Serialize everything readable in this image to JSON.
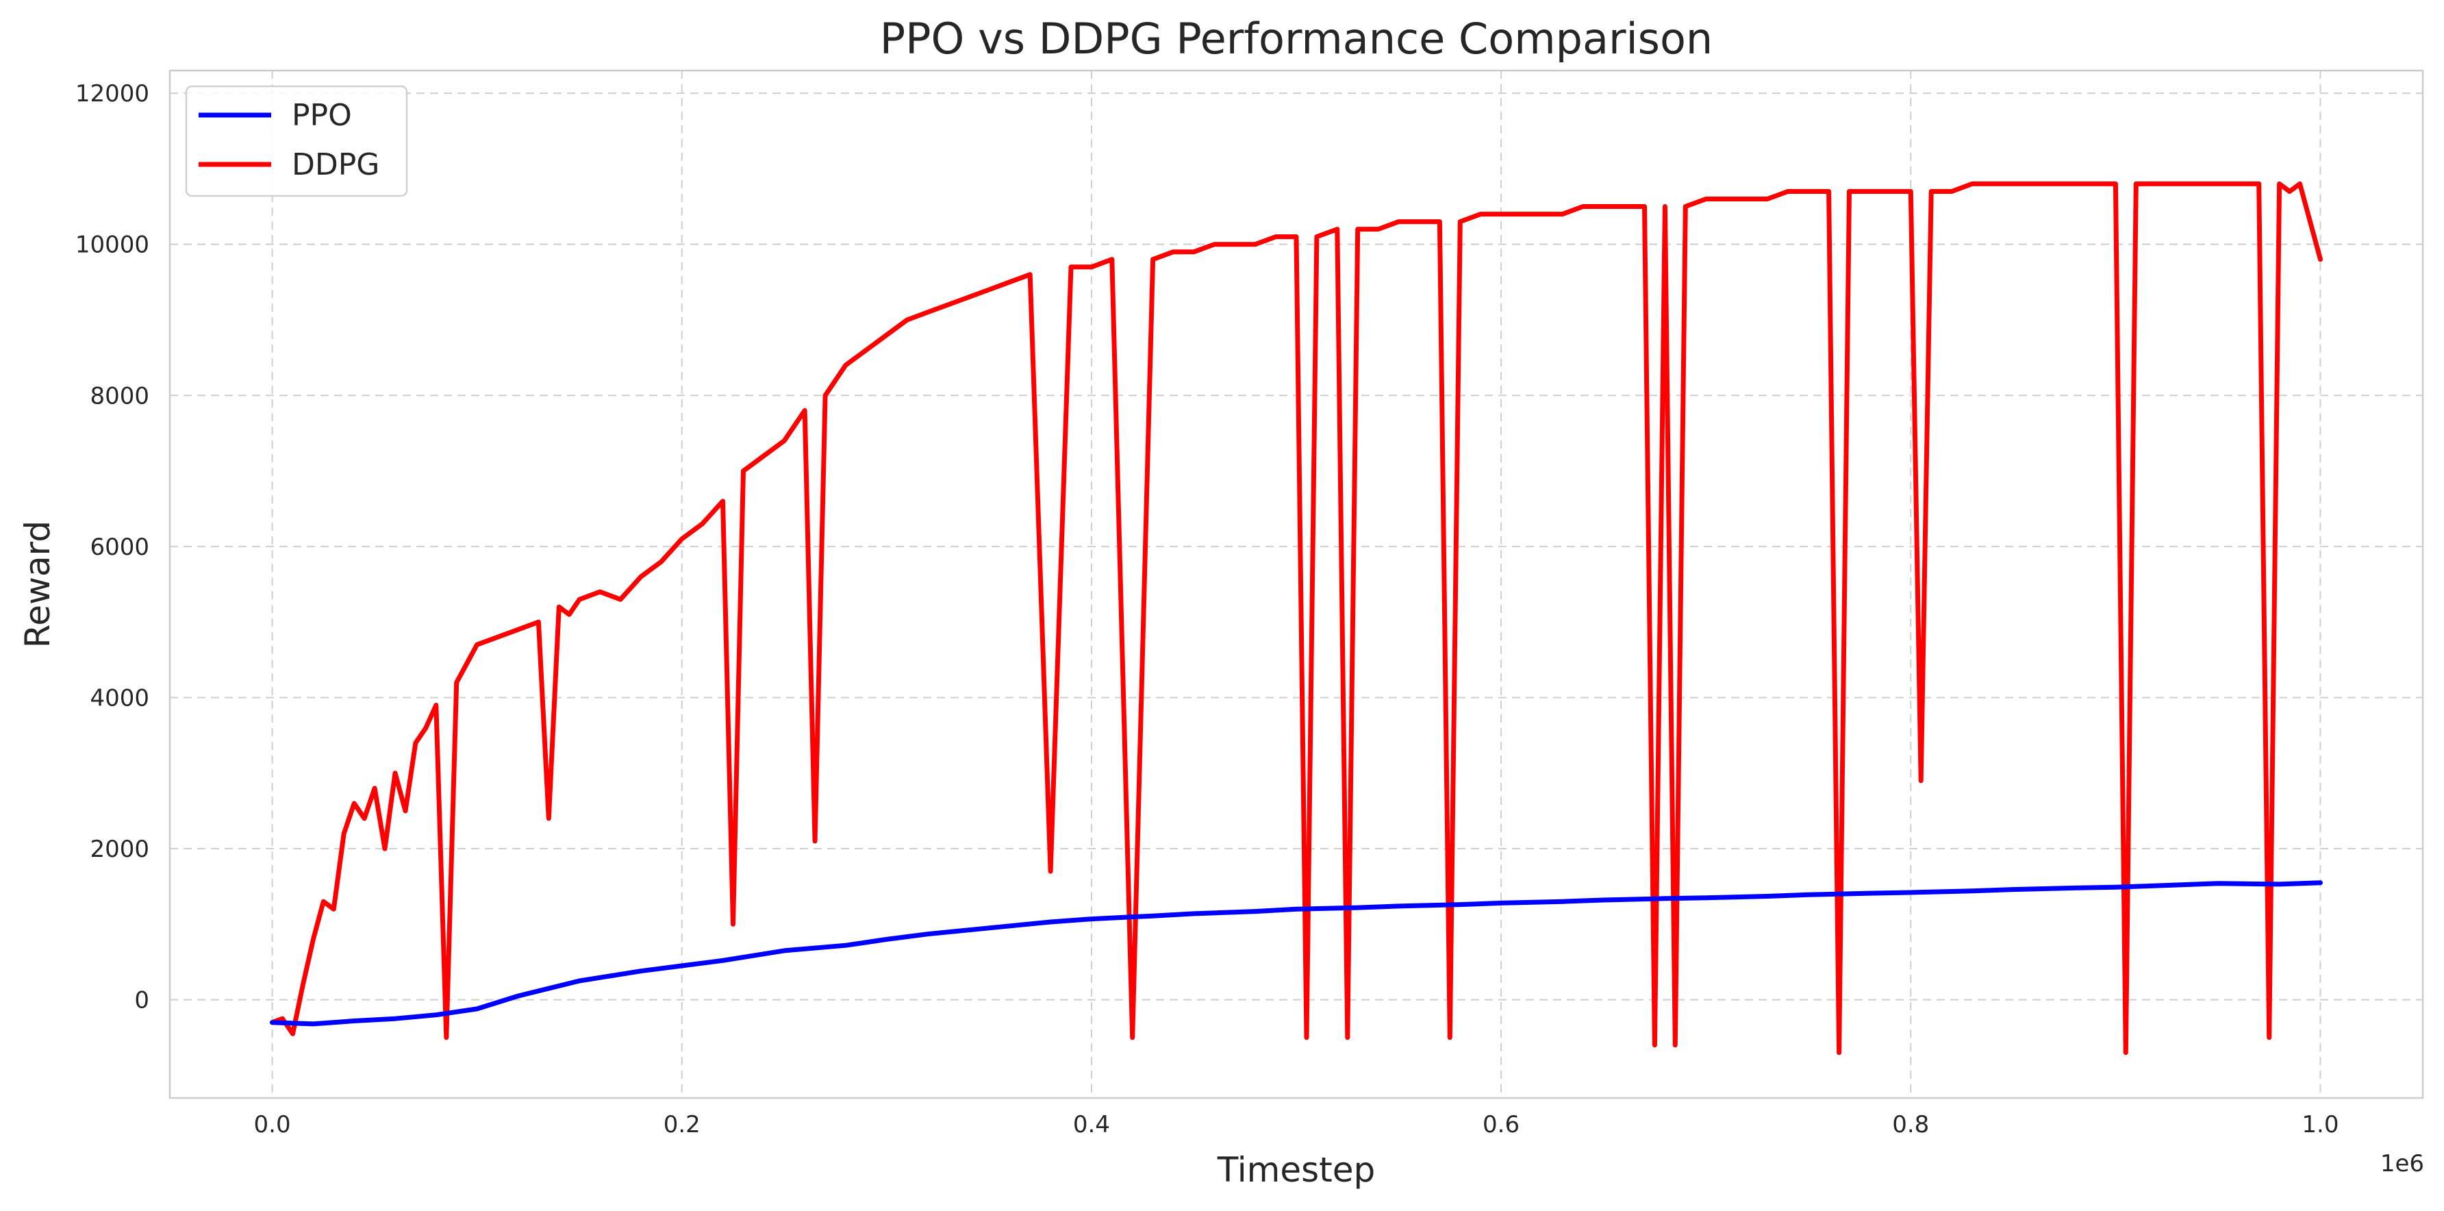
{
  "chart_data": {
    "type": "line",
    "title": "PPO vs DDPG Performance Comparison",
    "xlabel": "Timestep",
    "ylabel": "Reward",
    "x_offset_label": "1e6",
    "xlim": [
      -0.05,
      1.05
    ],
    "ylim": [
      -1300,
      12300
    ],
    "x_ticks": [
      0.0,
      0.2,
      0.4,
      0.6,
      0.8,
      1.0
    ],
    "x_tick_labels": [
      "0.0",
      "0.2",
      "0.4",
      "0.6",
      "0.8",
      "1.0"
    ],
    "y_ticks": [
      0,
      2000,
      4000,
      6000,
      8000,
      10000,
      12000
    ],
    "y_tick_labels": [
      "0",
      "2000",
      "4000",
      "6000",
      "8000",
      "10000",
      "12000"
    ],
    "grid": true,
    "legend_position": "top-left",
    "series": [
      {
        "name": "PPO",
        "color": "#0000ff",
        "x": [
          0.0,
          0.02,
          0.04,
          0.06,
          0.08,
          0.1,
          0.12,
          0.15,
          0.18,
          0.2,
          0.22,
          0.25,
          0.28,
          0.3,
          0.32,
          0.35,
          0.38,
          0.4,
          0.43,
          0.45,
          0.48,
          0.5,
          0.53,
          0.55,
          0.58,
          0.6,
          0.63,
          0.65,
          0.68,
          0.7,
          0.73,
          0.75,
          0.78,
          0.8,
          0.83,
          0.85,
          0.88,
          0.9,
          0.93,
          0.95,
          0.98,
          1.0
        ],
        "y": [
          -300,
          -320,
          -280,
          -250,
          -200,
          -120,
          50,
          250,
          380,
          450,
          520,
          650,
          720,
          800,
          870,
          950,
          1030,
          1070,
          1110,
          1140,
          1170,
          1200,
          1220,
          1240,
          1260,
          1280,
          1300,
          1320,
          1340,
          1350,
          1370,
          1390,
          1410,
          1420,
          1440,
          1460,
          1480,
          1490,
          1520,
          1540,
          1530,
          1550
        ]
      },
      {
        "name": "DDPG",
        "color": "#ff0000",
        "x": [
          0.0,
          0.005,
          0.01,
          0.015,
          0.02,
          0.025,
          0.03,
          0.035,
          0.04,
          0.045,
          0.05,
          0.055,
          0.06,
          0.065,
          0.07,
          0.075,
          0.08,
          0.085,
          0.09,
          0.1,
          0.11,
          0.12,
          0.13,
          0.135,
          0.14,
          0.145,
          0.15,
          0.16,
          0.17,
          0.18,
          0.19,
          0.2,
          0.21,
          0.22,
          0.225,
          0.23,
          0.24,
          0.25,
          0.26,
          0.265,
          0.27,
          0.28,
          0.29,
          0.3,
          0.31,
          0.32,
          0.33,
          0.34,
          0.35,
          0.36,
          0.37,
          0.38,
          0.39,
          0.4,
          0.41,
          0.42,
          0.43,
          0.44,
          0.45,
          0.46,
          0.47,
          0.48,
          0.49,
          0.5,
          0.505,
          0.51,
          0.52,
          0.525,
          0.53,
          0.54,
          0.55,
          0.56,
          0.57,
          0.575,
          0.58,
          0.59,
          0.6,
          0.61,
          0.62,
          0.63,
          0.64,
          0.65,
          0.66,
          0.67,
          0.675,
          0.68,
          0.685,
          0.69,
          0.7,
          0.71,
          0.72,
          0.73,
          0.74,
          0.75,
          0.76,
          0.765,
          0.77,
          0.78,
          0.79,
          0.8,
          0.805,
          0.81,
          0.82,
          0.83,
          0.84,
          0.85,
          0.86,
          0.87,
          0.88,
          0.89,
          0.9,
          0.905,
          0.91,
          0.92,
          0.93,
          0.94,
          0.95,
          0.96,
          0.97,
          0.975,
          0.98,
          0.985,
          0.99,
          1.0
        ],
        "y": [
          -300,
          -250,
          -450,
          200,
          800,
          1300,
          1200,
          2200,
          2600,
          2400,
          2800,
          2000,
          3000,
          2500,
          3400,
          3600,
          3900,
          -500,
          4200,
          4700,
          4800,
          4900,
          5000,
          2400,
          5200,
          5100,
          5300,
          5400,
          5300,
          5600,
          5800,
          6100,
          6300,
          6600,
          1000,
          7000,
          7200,
          7400,
          7800,
          2100,
          8000,
          8400,
          8600,
          8800,
          9000,
          9100,
          9200,
          9300,
          9400,
          9500,
          9600,
          1700,
          9700,
          9700,
          9800,
          -500,
          9800,
          9900,
          9900,
          10000,
          10000,
          10000,
          10100,
          10100,
          -500,
          10100,
          10200,
          -500,
          10200,
          10200,
          10300,
          10300,
          10300,
          -500,
          10300,
          10400,
          10400,
          10400,
          10400,
          10400,
          10500,
          10500,
          10500,
          10500,
          -600,
          10500,
          -600,
          10500,
          10600,
          10600,
          10600,
          10600,
          10700,
          10700,
          10700,
          -700,
          10700,
          10700,
          10700,
          10700,
          2900,
          10700,
          10700,
          10800,
          10800,
          10800,
          10800,
          10800,
          10800,
          10800,
          10800,
          -700,
          10800,
          10800,
          10800,
          10800,
          10800,
          10800,
          10800,
          -500,
          10800,
          10700,
          10800,
          9800
        ]
      }
    ]
  }
}
